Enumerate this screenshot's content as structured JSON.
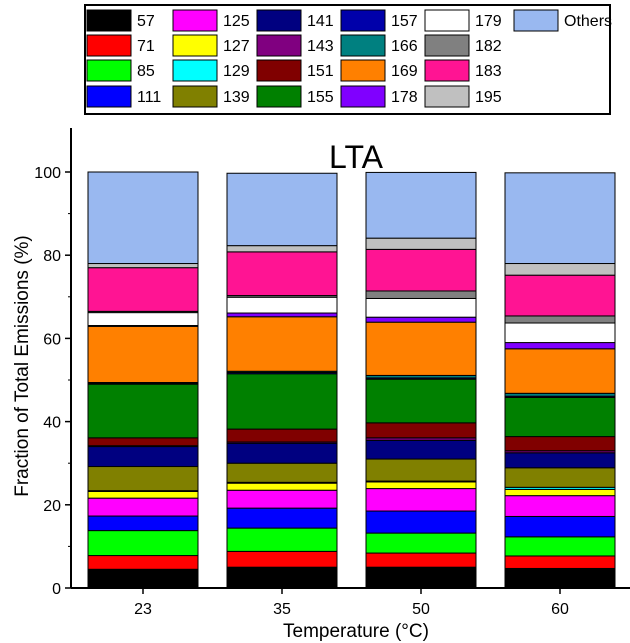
{
  "chart_data": {
    "type": "bar",
    "stacked": true,
    "title": "LTA",
    "xlabel": "Temperature (°C)",
    "ylabel": "Fraction of Total Emissions (%)",
    "ylim": [
      0,
      100
    ],
    "yticks": [
      0,
      20,
      40,
      60,
      80,
      100
    ],
    "grid": false,
    "legend_position": "top",
    "categories": [
      "23",
      "35",
      "50",
      "60"
    ],
    "series": [
      {
        "name": "57",
        "color": "#000000",
        "values": [
          4.5,
          5.0,
          5.0,
          4.7
        ]
      },
      {
        "name": "71",
        "color": "#ff0000",
        "values": [
          3.3,
          3.8,
          3.4,
          3.0
        ]
      },
      {
        "name": "85",
        "color": "#00ff00",
        "values": [
          6.0,
          5.6,
          4.8,
          4.6
        ]
      },
      {
        "name": "111",
        "color": "#0000ff",
        "values": [
          3.5,
          4.8,
          5.3,
          4.9
        ]
      },
      {
        "name": "125",
        "color": "#ff00ff",
        "values": [
          4.3,
          4.3,
          5.4,
          5.0
        ]
      },
      {
        "name": "127",
        "color": "#ffff00",
        "values": [
          1.6,
          1.7,
          1.6,
          1.5
        ]
      },
      {
        "name": "129",
        "color": "#00ffff",
        "values": [
          0.2,
          0.2,
          0.2,
          0.5
        ]
      },
      {
        "name": "139",
        "color": "#808000",
        "values": [
          5.8,
          4.6,
          5.3,
          4.7
        ]
      },
      {
        "name": "141",
        "color": "#000080",
        "values": [
          4.8,
          4.8,
          4.5,
          3.6
        ]
      },
      {
        "name": "143",
        "color": "#800080",
        "values": [
          0.2,
          0.3,
          0.6,
          0.5
        ]
      },
      {
        "name": "151",
        "color": "#800000",
        "values": [
          1.9,
          3.1,
          3.6,
          3.4
        ]
      },
      {
        "name": "155",
        "color": "#008000",
        "values": [
          12.9,
          13.3,
          10.5,
          9.4
        ]
      },
      {
        "name": "157",
        "color": "#0000aa",
        "values": [
          0.2,
          0.3,
          0.3,
          0.3
        ]
      },
      {
        "name": "166",
        "color": "#008080",
        "values": [
          0.2,
          0.3,
          0.6,
          0.7
        ]
      },
      {
        "name": "169",
        "color": "#ff8000",
        "values": [
          13.5,
          13.1,
          12.8,
          10.7
        ]
      },
      {
        "name": "178",
        "color": "#8000ff",
        "values": [
          0.2,
          0.9,
          1.2,
          1.5
        ]
      },
      {
        "name": "179",
        "color": "#ffffff",
        "values": [
          3.1,
          3.8,
          4.5,
          4.7
        ]
      },
      {
        "name": "182",
        "color": "#808080",
        "values": [
          0.3,
          0.4,
          1.8,
          1.7
        ]
      },
      {
        "name": "183",
        "color": "#ff1493",
        "values": [
          10.5,
          10.5,
          10.0,
          9.8
        ]
      },
      {
        "name": "195",
        "color": "#c0c0c0",
        "values": [
          1.0,
          1.5,
          2.7,
          2.8
        ]
      },
      {
        "name": "Others",
        "color": "#99b8f0",
        "values": [
          22.0,
          17.4,
          15.8,
          21.8
        ]
      }
    ]
  }
}
